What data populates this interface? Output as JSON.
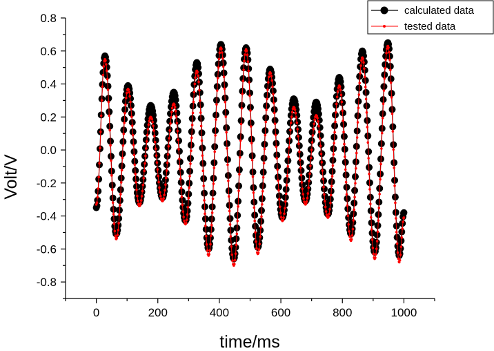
{
  "chart_data": {
    "type": "line",
    "title": "",
    "xlabel": "time/ms",
    "ylabel": "Volt/V",
    "xlim": [
      -100,
      1100
    ],
    "ylim": [
      -0.9,
      0.8
    ],
    "x_ticks": [
      0,
      200,
      400,
      600,
      800,
      1000
    ],
    "x_tick_labels": [
      "0",
      "200",
      "400",
      "600",
      "800",
      "1000"
    ],
    "y_ticks": [
      -0.8,
      -0.6,
      -0.4,
      -0.2,
      0.0,
      0.2,
      0.4,
      0.6,
      0.8
    ],
    "y_tick_labels": [
      "-0.8",
      "-0.6",
      "-0.4",
      "-0.2",
      "0.0",
      "0.2",
      "0.4",
      "0.6",
      "0.8"
    ],
    "grid": false,
    "legend_position": "top-right",
    "colors": {
      "calculated": "#000000",
      "tested": "#ff0000"
    },
    "series": [
      {
        "name": "calculated data",
        "marker": "filled circle, large",
        "x": [
          0,
          28,
          65,
          103,
          140,
          177,
          215,
          252,
          290,
          327,
          365,
          405,
          447,
          487,
          525,
          565,
          605,
          642,
          680,
          715,
          753,
          790,
          828,
          865,
          905,
          948,
          985,
          1000
        ],
        "y": [
          -0.35,
          0.57,
          -0.51,
          0.39,
          -0.32,
          0.27,
          -0.29,
          0.35,
          -0.43,
          0.53,
          -0.6,
          0.64,
          -0.66,
          0.62,
          -0.59,
          0.49,
          -0.41,
          0.31,
          -0.31,
          0.29,
          -0.39,
          0.44,
          -0.51,
          0.6,
          -0.62,
          0.65,
          -0.64,
          -0.38
        ]
      },
      {
        "name": "tested data",
        "marker": "small dot with line",
        "x": [
          0,
          28,
          65,
          103,
          140,
          177,
          215,
          252,
          290,
          327,
          365,
          405,
          447,
          487,
          525,
          565,
          605,
          642,
          680,
          715,
          753,
          790,
          828,
          865,
          905,
          948,
          985,
          1000
        ],
        "y": [
          -0.33,
          0.55,
          -0.54,
          0.37,
          -0.34,
          0.2,
          -0.31,
          0.28,
          -0.45,
          0.48,
          -0.64,
          0.62,
          -0.7,
          0.61,
          -0.63,
          0.47,
          -0.43,
          0.26,
          -0.33,
          0.21,
          -0.41,
          0.39,
          -0.55,
          0.56,
          -0.66,
          0.63,
          -0.68,
          -0.41
        ]
      }
    ]
  }
}
